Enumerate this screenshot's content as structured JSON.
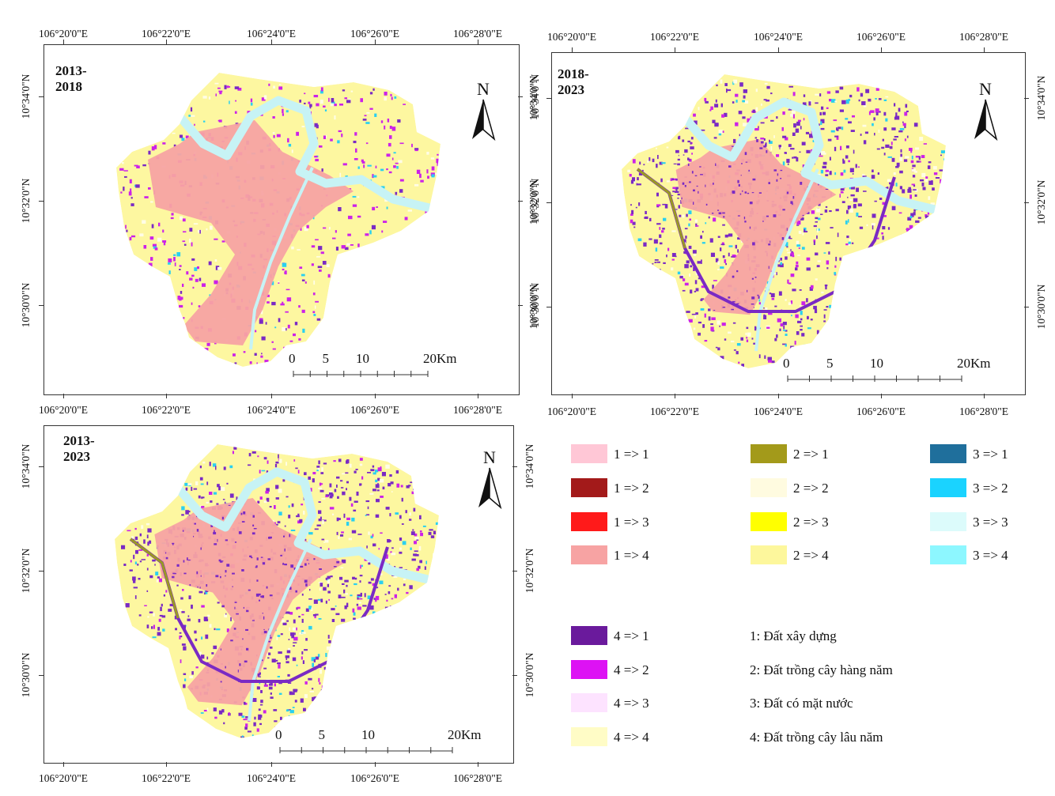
{
  "panels": [
    {
      "id": "p1",
      "title": "2013-2018",
      "top_labels": [
        "106°20'0\"E",
        "106°22'0\"E",
        "106°24'0\"E",
        "106°26'0\"E",
        "106°28'0\"E"
      ],
      "bottom_labels": [
        "106°20'0\"E",
        "106°22'0\"E",
        "106°24'0\"E",
        "106°26'0\"E",
        "106°28'0\"E"
      ],
      "left_labels": [
        "10°34'0\"N",
        "10°32'0\"N",
        "10°30'0\"N"
      ],
      "right_labels": [
        "10°34'0\"N",
        "10°32'0\"N",
        "10°30'0\"N"
      ],
      "scale": [
        "0",
        "5",
        "10",
        "20Km"
      ]
    },
    {
      "id": "p2",
      "title": "2018-2023",
      "top_labels": [
        "106°20'0\"E",
        "106°22'0\"E",
        "106°24'0\"E",
        "106°26'0\"E",
        "106°28'0\"E"
      ],
      "bottom_labels": [
        "106°20'0\"E",
        "106°22'0\"E",
        "106°24'0\"E",
        "106°26'0\"E",
        "106°28'0\"E"
      ],
      "left_labels": [
        "10°34'0\"N",
        "10°32'0\"N",
        "10°30'0\"N"
      ],
      "right_labels": [
        "10°34'0\"N",
        "10°32'0\"N",
        "10°30'0\"N"
      ],
      "scale": [
        "0",
        "5",
        "10",
        "20Km"
      ]
    },
    {
      "id": "p3",
      "title": "2013-2023",
      "top_labels": [],
      "bottom_labels": [
        "106°20'0\"E",
        "106°22'0\"E",
        "106°24'0\"E",
        "106°26'0\"E",
        "106°28'0\"E"
      ],
      "left_labels": [
        "10°34'0\"N",
        "10°32'0\"N",
        "10°30'0\"N"
      ],
      "right_labels": [
        "10°34'0\"N",
        "10°32'0\"N",
        "10°30'0\"N"
      ],
      "scale": [
        "0",
        "5",
        "10",
        "20Km"
      ]
    }
  ],
  "north_label": "N",
  "legend": [
    {
      "label": "1 => 1",
      "color": "#ffc7d6"
    },
    {
      "label": "1 => 2",
      "color": "#a31a1a"
    },
    {
      "label": "1 => 3",
      "color": "#ff1a1a"
    },
    {
      "label": "1 => 4",
      "color": "#f7a3a3"
    },
    {
      "label": "2 => 1",
      "color": "#a39a1a"
    },
    {
      "label": "2 => 2",
      "color": "#fffbe0"
    },
    {
      "label": "2 => 3",
      "color": "#ffff00"
    },
    {
      "label": "2 => 4",
      "color": "#fdf79c"
    },
    {
      "label": "3 => 1",
      "color": "#1f6f9c"
    },
    {
      "label": "3 => 2",
      "color": "#1ad3ff"
    },
    {
      "label": "3 => 3",
      "color": "#dcfbfb"
    },
    {
      "label": "3 => 4",
      "color": "#8df7ff"
    },
    {
      "label": "4 => 1",
      "color": "#6a1a9c"
    },
    {
      "label": "4 => 2",
      "color": "#dd12f4"
    },
    {
      "label": "4 => 3",
      "color": "#fde3ff"
    },
    {
      "label": "4 => 4",
      "color": "#fffcc6"
    }
  ],
  "key": [
    "1: Đất xây dựng",
    "2: Đất trồng cây hàng năm",
    "3: Đất có mặt nước",
    "4: Đất trồng cây lâu năm"
  ],
  "colors": {
    "built": "#f7a3a3",
    "perennial": "#fdf7a0",
    "river": "#c7f3f5",
    "purple": "#7a2ac4",
    "magenta": "#cc22e8",
    "olive": "#9a9a22",
    "cyan": "#2ad0f0"
  }
}
